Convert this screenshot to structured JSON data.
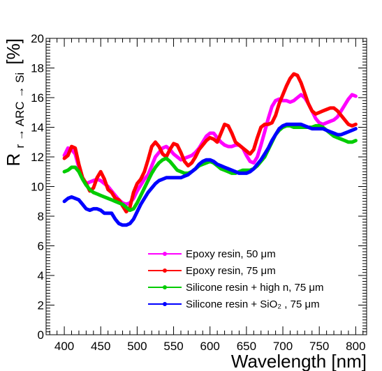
{
  "chart_data": {
    "type": "line",
    "xlabel": "Wavelength [nm]",
    "ylabel": {
      "main": "R",
      "sub": "r → ARC → Si",
      "unit": "[%]"
    },
    "xlim": [
      375,
      815
    ],
    "ylim": [
      0,
      20
    ],
    "x_ticks": [
      400,
      450,
      500,
      550,
      600,
      650,
      700,
      750,
      800
    ],
    "y_ticks": [
      0,
      2,
      4,
      6,
      8,
      10,
      12,
      14,
      16,
      18,
      20
    ],
    "grid": false,
    "legend_position": "bottom-right",
    "series": [
      {
        "name": "Epoxy resin, 50 μm",
        "color": "#ff00ff",
        "x": [
          400,
          405,
          410,
          415,
          420,
          425,
          430,
          435,
          440,
          445,
          450,
          455,
          460,
          465,
          470,
          475,
          480,
          485,
          490,
          495,
          500,
          505,
          510,
          515,
          520,
          525,
          530,
          535,
          540,
          545,
          550,
          555,
          560,
          565,
          570,
          575,
          580,
          585,
          590,
          595,
          600,
          605,
          610,
          615,
          620,
          625,
          630,
          635,
          640,
          645,
          650,
          655,
          660,
          665,
          670,
          675,
          680,
          685,
          690,
          695,
          700,
          705,
          710,
          715,
          720,
          725,
          730,
          735,
          740,
          745,
          750,
          755,
          760,
          765,
          770,
          775,
          780,
          785,
          790,
          795,
          800
        ],
        "values": [
          12.1,
          12.6,
          12.5,
          12.2,
          11.3,
          10.6,
          10.2,
          10.3,
          10.4,
          10.5,
          10.4,
          10.2,
          10.0,
          9.7,
          9.4,
          9.1,
          8.9,
          8.8,
          8.9,
          9.2,
          9.7,
          10.1,
          10.5,
          10.8,
          11.4,
          12.0,
          12.3,
          12.6,
          12.7,
          12.5,
          12.2,
          12.0,
          11.8,
          11.9,
          12.0,
          12.1,
          12.3,
          12.6,
          13.0,
          13.4,
          13.6,
          13.6,
          13.3,
          13.0,
          12.8,
          12.7,
          12.7,
          12.8,
          12.8,
          12.6,
          12.1,
          11.7,
          11.6,
          12.0,
          12.8,
          13.7,
          14.6,
          15.4,
          15.8,
          15.9,
          15.8,
          15.8,
          15.7,
          15.8,
          16.0,
          16.2,
          16.0,
          15.6,
          15.1,
          14.6,
          14.3,
          14.2,
          14.3,
          14.4,
          14.5,
          14.7,
          15.1,
          15.5,
          15.9,
          16.2,
          16.1
        ]
      },
      {
        "name": "Epoxy resin, 75 μm",
        "color": "#ff0000",
        "x": [
          400,
          405,
          410,
          415,
          420,
          425,
          430,
          435,
          440,
          445,
          450,
          455,
          460,
          465,
          470,
          475,
          480,
          485,
          490,
          495,
          500,
          505,
          510,
          515,
          520,
          525,
          530,
          535,
          540,
          545,
          550,
          555,
          560,
          565,
          570,
          575,
          580,
          585,
          590,
          595,
          600,
          605,
          610,
          615,
          620,
          625,
          630,
          635,
          640,
          645,
          650,
          655,
          660,
          665,
          670,
          675,
          680,
          685,
          690,
          695,
          700,
          705,
          710,
          715,
          720,
          725,
          730,
          735,
          740,
          745,
          750,
          755,
          760,
          765,
          770,
          775,
          780,
          785,
          790,
          795,
          800
        ],
        "values": [
          11.9,
          12.1,
          12.7,
          12.6,
          11.5,
          10.6,
          10.2,
          9.7,
          9.9,
          10.6,
          11.0,
          10.5,
          9.8,
          9.6,
          9.2,
          9.1,
          8.7,
          8.3,
          8.6,
          9.6,
          10.2,
          10.5,
          11.0,
          11.8,
          12.7,
          13.0,
          12.7,
          12.2,
          12.0,
          12.5,
          12.9,
          12.8,
          12.3,
          11.7,
          11.4,
          11.6,
          12.0,
          12.5,
          12.8,
          13.1,
          13.3,
          13.2,
          13.0,
          13.6,
          14.2,
          14.1,
          13.6,
          13.0,
          12.8,
          12.6,
          12.4,
          12.2,
          12.5,
          13.3,
          14.0,
          14.2,
          14.2,
          14.3,
          14.8,
          15.6,
          16.2,
          16.8,
          17.3,
          17.6,
          17.5,
          17.0,
          16.3,
          15.6,
          15.1,
          14.9,
          15.0,
          15.1,
          15.2,
          15.3,
          15.3,
          15.1,
          14.8,
          14.5,
          14.2,
          14.1,
          14.2
        ]
      },
      {
        "name": "Silicone resin + high n, 75 μm",
        "color": "#00cc00",
        "x": [
          400,
          405,
          410,
          415,
          420,
          425,
          430,
          435,
          440,
          445,
          450,
          455,
          460,
          465,
          470,
          475,
          480,
          485,
          490,
          495,
          500,
          505,
          510,
          515,
          520,
          525,
          530,
          535,
          540,
          545,
          550,
          555,
          560,
          565,
          570,
          575,
          580,
          585,
          590,
          595,
          600,
          605,
          610,
          615,
          620,
          625,
          630,
          635,
          640,
          645,
          650,
          655,
          660,
          665,
          670,
          675,
          680,
          685,
          690,
          695,
          700,
          705,
          710,
          715,
          720,
          725,
          730,
          735,
          740,
          745,
          750,
          755,
          760,
          765,
          770,
          775,
          780,
          785,
          790,
          795,
          800
        ],
        "values": [
          11.0,
          11.1,
          11.3,
          11.3,
          11.0,
          10.5,
          10.1,
          9.8,
          9.6,
          9.5,
          9.4,
          9.3,
          9.2,
          9.1,
          9.0,
          8.9,
          8.8,
          8.6,
          8.4,
          8.5,
          8.9,
          9.4,
          9.9,
          10.4,
          10.9,
          11.3,
          11.6,
          11.8,
          11.9,
          11.7,
          11.4,
          11.1,
          11.0,
          10.9,
          10.9,
          11.0,
          11.2,
          11.4,
          11.5,
          11.6,
          11.7,
          11.6,
          11.4,
          11.2,
          11.1,
          11.0,
          10.9,
          10.9,
          11.0,
          11.1,
          11.1,
          11.1,
          11.2,
          11.4,
          11.7,
          12.0,
          12.5,
          13.0,
          13.5,
          13.8,
          14.0,
          14.1,
          14.1,
          14.0,
          14.0,
          14.0,
          14.0,
          14.0,
          14.0,
          14.1,
          14.1,
          14.0,
          13.8,
          13.6,
          13.4,
          13.3,
          13.2,
          13.1,
          13.0,
          13.0,
          13.1
        ]
      },
      {
        "name": "Silicone resin + SiO₂ , 75 μm",
        "color": "#0000ff",
        "x": [
          400,
          405,
          410,
          415,
          420,
          425,
          430,
          435,
          440,
          445,
          450,
          455,
          460,
          465,
          470,
          475,
          480,
          485,
          490,
          495,
          500,
          505,
          510,
          515,
          520,
          525,
          530,
          535,
          540,
          545,
          550,
          555,
          560,
          565,
          570,
          575,
          580,
          585,
          590,
          595,
          600,
          605,
          610,
          615,
          620,
          625,
          630,
          635,
          640,
          645,
          650,
          655,
          660,
          665,
          670,
          675,
          680,
          685,
          690,
          695,
          700,
          705,
          710,
          715,
          720,
          725,
          730,
          735,
          740,
          745,
          750,
          755,
          760,
          765,
          770,
          775,
          780,
          785,
          790,
          795,
          800
        ],
        "values": [
          9.0,
          9.2,
          9.3,
          9.2,
          9.1,
          8.8,
          8.5,
          8.4,
          8.5,
          8.5,
          8.4,
          8.2,
          8.2,
          8.2,
          7.8,
          7.5,
          7.4,
          7.4,
          7.5,
          7.8,
          8.3,
          8.8,
          9.2,
          9.6,
          9.9,
          10.2,
          10.4,
          10.5,
          10.6,
          10.6,
          10.6,
          10.6,
          10.6,
          10.7,
          10.8,
          11.0,
          11.2,
          11.5,
          11.7,
          11.8,
          11.8,
          11.7,
          11.5,
          11.4,
          11.3,
          11.2,
          11.1,
          11.0,
          10.9,
          10.9,
          10.9,
          11.0,
          11.2,
          11.5,
          11.8,
          12.2,
          12.6,
          13.1,
          13.5,
          13.9,
          14.1,
          14.2,
          14.2,
          14.2,
          14.2,
          14.2,
          14.1,
          14.0,
          13.9,
          13.9,
          13.9,
          13.9,
          13.8,
          13.7,
          13.6,
          13.5,
          13.5,
          13.6,
          13.7,
          13.8,
          13.9
        ]
      }
    ]
  }
}
